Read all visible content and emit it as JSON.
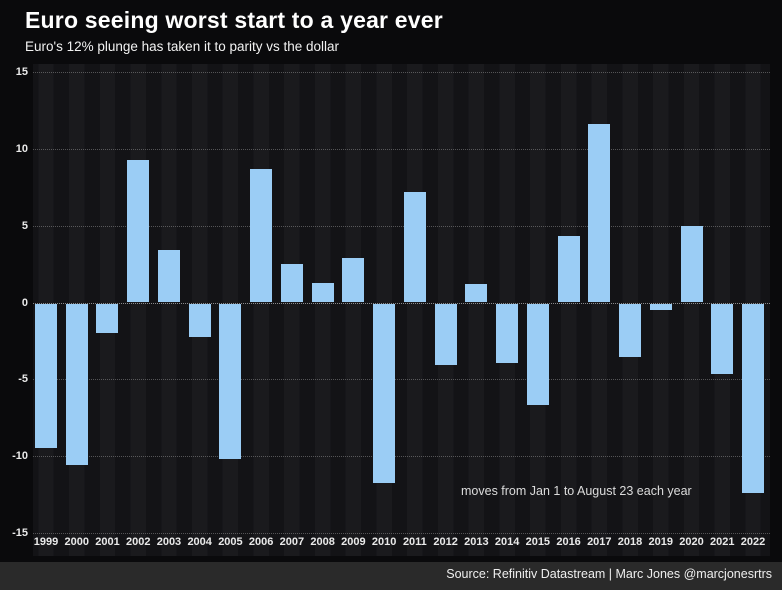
{
  "header": {
    "title": "Euro seeing worst start to a year ever",
    "subtitle": "Euro's 12% plunge has taken it to parity vs the dollar"
  },
  "chart_data": {
    "type": "bar",
    "title": "Euro seeing worst start to a year ever",
    "subtitle": "Euro's 12% plunge has taken it to parity vs the dollar",
    "categories": [
      "1999",
      "2000",
      "2001",
      "2002",
      "2003",
      "2004",
      "2005",
      "2006",
      "2007",
      "2008",
      "2009",
      "2010",
      "2011",
      "2012",
      "2013",
      "2014",
      "2015",
      "2016",
      "2017",
      "2018",
      "2019",
      "2020",
      "2021",
      "2022"
    ],
    "values": [
      -9.4,
      -10.5,
      -1.9,
      9.3,
      3.4,
      -2.2,
      -10.1,
      8.7,
      2.5,
      1.3,
      2.9,
      -11.7,
      7.2,
      -4.0,
      1.2,
      -3.9,
      -6.6,
      4.3,
      11.6,
      -3.5,
      -0.4,
      5.0,
      -4.6,
      -12.3
    ],
    "annotation": "moves from Jan 1 to August 23 each year",
    "xlabel": "",
    "ylabel": "",
    "ylim": [
      -15,
      15
    ],
    "yticks": [
      15,
      10,
      5,
      0,
      -5,
      -10,
      -15
    ],
    "grid": "horizontal-dotted",
    "legend": "none",
    "bar_color": "#9bcdf5",
    "background_color": "#121214"
  },
  "footer": {
    "source": "Source: Refinitiv Datastream | Marc Jones @marcjonesrtrs"
  }
}
